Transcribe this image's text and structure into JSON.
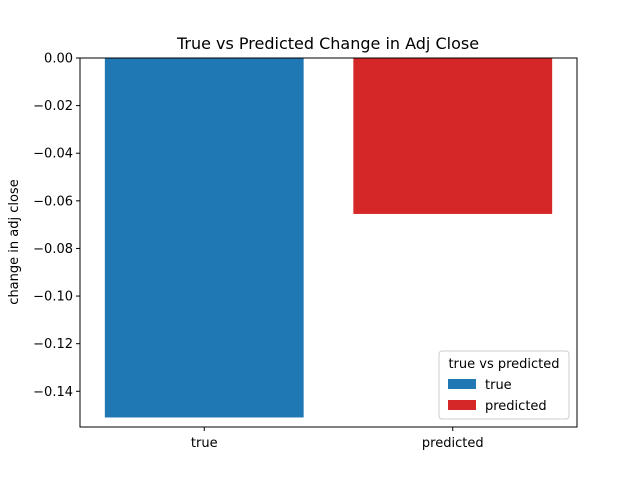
{
  "chart_data": {
    "type": "bar",
    "title": "True vs Predicted Change in Adj Close",
    "xlabel": "",
    "ylabel": "change in adj close",
    "categories": [
      "true",
      "predicted"
    ],
    "values": [
      -0.151,
      -0.0655
    ],
    "colors": [
      "#1f77b4",
      "#d62728"
    ],
    "ylim": [
      -0.155,
      0.0
    ],
    "yticks": [
      0.0,
      -0.02,
      -0.04,
      -0.06,
      -0.08,
      -0.1,
      -0.12,
      -0.14
    ],
    "ytick_labels": [
      "0.00",
      "−0.02",
      "−0.04",
      "−0.06",
      "−0.08",
      "−0.10",
      "−0.12",
      "−0.14"
    ],
    "grid": false,
    "legend": {
      "title": "true vs predicted",
      "placement": "lower-right",
      "entries": [
        "true",
        "predicted"
      ]
    }
  }
}
